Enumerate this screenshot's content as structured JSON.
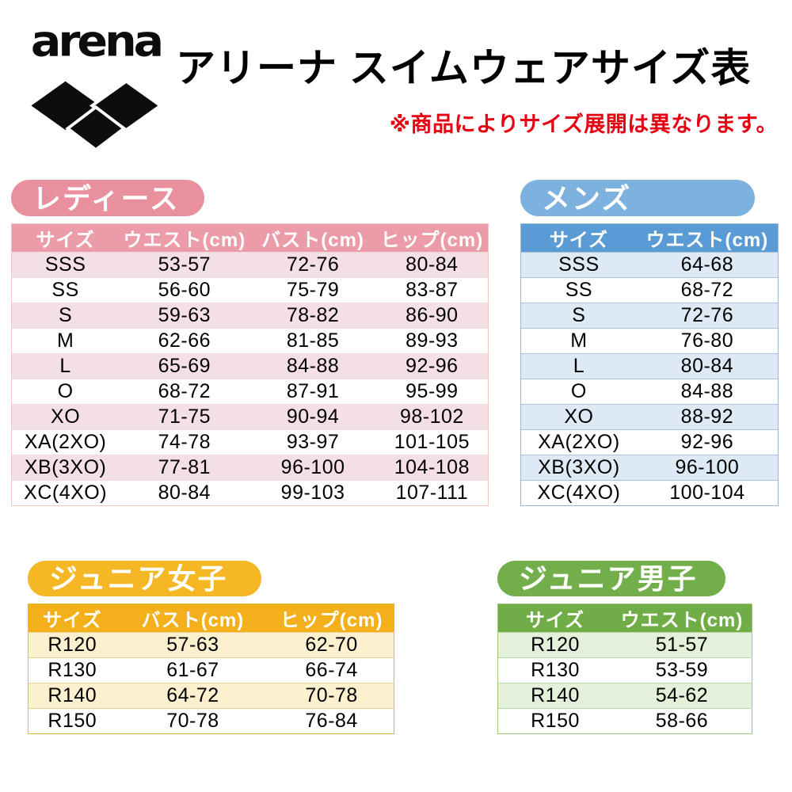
{
  "logo": {
    "wordmark": "arena"
  },
  "header": {
    "title": "アリーナ スイムウェアサイズ表",
    "note": "※商品によりサイズ展開は異なります。",
    "note_color": "#e60012"
  },
  "tables": {
    "ladies": {
      "label": "レディース",
      "columns": [
        "サイズ",
        "ウエスト(cm)",
        "バスト(cm)",
        "ヒップ(cm)"
      ],
      "rows": [
        [
          "SSS",
          "53-57",
          "72-76",
          "80-84"
        ],
        [
          "SS",
          "56-60",
          "75-79",
          "83-87"
        ],
        [
          "S",
          "59-63",
          "78-82",
          "86-90"
        ],
        [
          "M",
          "62-66",
          "81-85",
          "89-93"
        ],
        [
          "L",
          "65-69",
          "84-88",
          "92-96"
        ],
        [
          "O",
          "68-72",
          "87-91",
          "95-99"
        ],
        [
          "XO",
          "71-75",
          "90-94",
          "98-102"
        ],
        [
          "XA(2XO)",
          "74-78",
          "93-97",
          "101-105"
        ],
        [
          "XB(3XO)",
          "77-81",
          "96-100",
          "104-108"
        ],
        [
          "XC(4XO)",
          "80-84",
          "99-103",
          "107-111"
        ]
      ],
      "colors": {
        "pill": "#e8909e",
        "header": "#ec9ba8",
        "row_alt": "#f4dfe4",
        "border": "#f0c5bc",
        "line": "#f3dade"
      }
    },
    "mens": {
      "label": "メンズ",
      "columns": [
        "サイズ",
        "ウエスト(cm)"
      ],
      "rows": [
        [
          "SSS",
          "64-68"
        ],
        [
          "SS",
          "68-72"
        ],
        [
          "S",
          "72-76"
        ],
        [
          "M",
          "76-80"
        ],
        [
          "L",
          "80-84"
        ],
        [
          "O",
          "84-88"
        ],
        [
          "XO",
          "88-92"
        ],
        [
          "XA(2XO)",
          "92-96"
        ],
        [
          "XB(3XO)",
          "96-100"
        ],
        [
          "XC(4XO)",
          "100-104"
        ]
      ],
      "colors": {
        "pill": "#7db1de",
        "header": "#5b9bd5",
        "row_alt": "#ddeaf6",
        "border": "#97b9d8",
        "line": "#a9c3dc"
      }
    },
    "junior_girls": {
      "label": "ジュニア女子",
      "columns": [
        "サイズ",
        "バスト(cm)",
        "ヒップ(cm)"
      ],
      "rows": [
        [
          "R120",
          "57-63",
          "62-70"
        ],
        [
          "R130",
          "61-67",
          "66-74"
        ],
        [
          "R140",
          "64-72",
          "70-78"
        ],
        [
          "R150",
          "70-78",
          "76-84"
        ]
      ],
      "colors": {
        "pill": "#f5b723",
        "header": "#f3b01b",
        "row_alt": "#fcf0ce",
        "border": "#dfb54a",
        "line": "#ebd291"
      }
    },
    "junior_boys": {
      "label": "ジュニア男子",
      "columns": [
        "サイズ",
        "ウエスト(cm)"
      ],
      "rows": [
        [
          "R120",
          "51-57"
        ],
        [
          "R130",
          "53-59"
        ],
        [
          "R140",
          "54-62"
        ],
        [
          "R150",
          "58-66"
        ]
      ],
      "colors": {
        "pill": "#72ae4a",
        "header": "#70ad47",
        "row_alt": "#e3f0da",
        "border": "#9cc77e",
        "line": "#bcdaa6"
      }
    }
  }
}
